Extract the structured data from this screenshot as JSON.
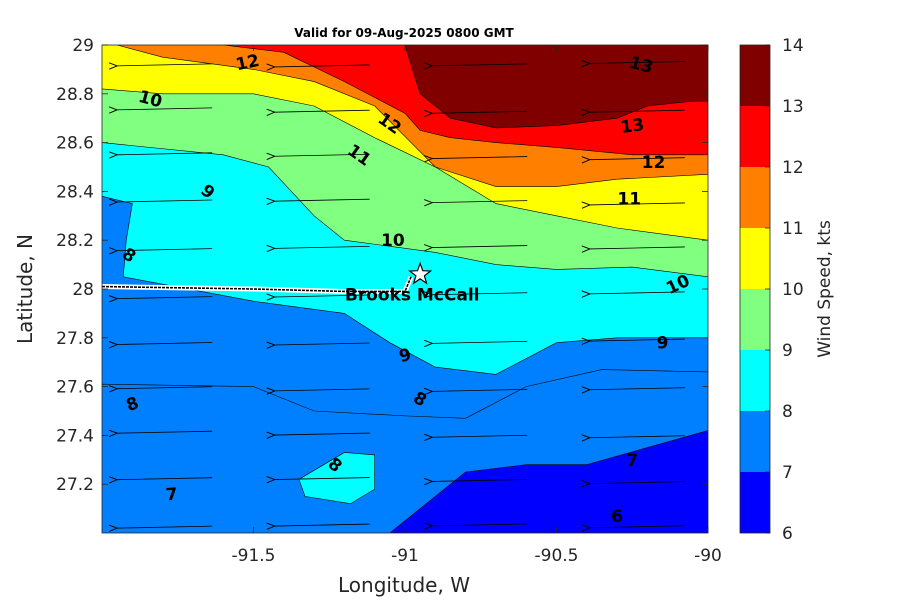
{
  "chart_data": {
    "type": "contourf",
    "title": "Valid for 09-Aug-2025 0800 GMT",
    "xlabel": "Longitude, W",
    "ylabel": "Latitude, N",
    "colorbar_label": "Wind Speed, kts",
    "xlim": [
      -92,
      -90
    ],
    "ylim": [
      27,
      29
    ],
    "x_ticks": [
      -91.5,
      -91,
      -90.5,
      -90
    ],
    "x_tick_labels": [
      "-91.5",
      "-91",
      "-90.5",
      "-90"
    ],
    "y_ticks": [
      27.2,
      27.4,
      27.6,
      27.8,
      28,
      28.2,
      28.4,
      28.6,
      28.8,
      29
    ],
    "y_tick_labels": [
      "27.2",
      "27.4",
      "27.6",
      "27.8",
      "28",
      "28.2",
      "28.4",
      "28.6",
      "28.8",
      "29"
    ],
    "levels": [
      6,
      7,
      8,
      9,
      10,
      11,
      12,
      13,
      14
    ],
    "colorbar_tick_labels": [
      "6",
      "7",
      "8",
      "9",
      "10",
      "11",
      "12",
      "13",
      "14"
    ],
    "level_colors": [
      "#0000ff",
      "#0080ff",
      "#00ffff",
      "#80ff80",
      "#ffff00",
      "#ff8000",
      "#ff0000",
      "#800000"
    ],
    "wind_direction": "from east (arrows point west)",
    "contours": [
      {
        "level": 7,
        "points": [
          [
            -92,
            27.61
          ],
          [
            -91.5,
            27.6
          ],
          [
            -91.3,
            27.5
          ],
          [
            -91,
            27.48
          ],
          [
            -90.8,
            27.47
          ],
          [
            -90.6,
            27.6
          ],
          [
            -90.35,
            27.67
          ],
          [
            -90,
            27.66
          ]
        ]
      },
      {
        "level": 8,
        "points": [
          [
            -92,
            28.38
          ],
          [
            -91.9,
            28.35
          ],
          [
            -91.92,
            28.2
          ],
          [
            -91.93,
            28.05
          ],
          [
            -91.5,
            27.95
          ],
          [
            -91.2,
            27.9
          ],
          [
            -91.05,
            27.78
          ],
          [
            -90.9,
            27.68
          ],
          [
            -90.7,
            27.65
          ],
          [
            -90.5,
            27.78
          ],
          [
            -90.3,
            27.8
          ],
          [
            -90,
            27.8
          ]
        ]
      },
      {
        "level": 9,
        "points": [
          [
            -92,
            28.6
          ],
          [
            -91.6,
            28.55
          ],
          [
            -91.45,
            28.5
          ],
          [
            -91.3,
            28.3
          ],
          [
            -91.2,
            28.2
          ],
          [
            -90.9,
            28.15
          ],
          [
            -90.7,
            28.1
          ],
          [
            -90.5,
            28.08
          ],
          [
            -90.25,
            28.09
          ],
          [
            -90,
            28.05
          ]
        ]
      },
      {
        "level": 10,
        "points": [
          [
            -92,
            28.82
          ],
          [
            -91.8,
            28.8
          ],
          [
            -91.5,
            28.8
          ],
          [
            -91.3,
            28.75
          ],
          [
            -91.1,
            28.62
          ],
          [
            -90.9,
            28.5
          ],
          [
            -90.7,
            28.35
          ],
          [
            -90.5,
            28.3
          ],
          [
            -90.3,
            28.25
          ],
          [
            -90,
            28.2
          ]
        ]
      },
      {
        "level": 11,
        "points": [
          [
            -91.95,
            29
          ],
          [
            -91.8,
            28.95
          ],
          [
            -91.5,
            28.9
          ],
          [
            -91.3,
            28.85
          ],
          [
            -91.1,
            28.75
          ],
          [
            -90.9,
            28.5
          ],
          [
            -90.7,
            28.42
          ],
          [
            -90.5,
            28.42
          ],
          [
            -90.3,
            28.45
          ],
          [
            -90,
            28.47
          ]
        ]
      },
      {
        "level": 12,
        "points": [
          [
            -91.6,
            29
          ],
          [
            -91.4,
            28.97
          ],
          [
            -91.2,
            28.85
          ],
          [
            -91.0,
            28.72
          ],
          [
            -90.95,
            28.65
          ],
          [
            -90.85,
            28.62
          ],
          [
            -90.7,
            28.6
          ],
          [
            -90.5,
            28.58
          ],
          [
            -90.25,
            28.55
          ],
          [
            -90,
            28.55
          ]
        ]
      },
      {
        "level": 13,
        "points": [
          [
            -91.0,
            29
          ],
          [
            -90.95,
            28.8
          ],
          [
            -90.85,
            28.7
          ],
          [
            -90.7,
            28.66
          ],
          [
            -90.5,
            28.67
          ],
          [
            -90.3,
            28.7
          ],
          [
            -90.2,
            28.75
          ],
          [
            -90.05,
            28.77
          ],
          [
            -90,
            28.77
          ]
        ]
      },
      {
        "level": 6,
        "points": [
          [
            -91.05,
            27
          ],
          [
            -90.95,
            27.1
          ],
          [
            -90.8,
            27.25
          ],
          [
            -90.6,
            27.28
          ],
          [
            -90.4,
            27.28
          ],
          [
            -90.2,
            27.35
          ],
          [
            -90,
            27.42
          ]
        ]
      }
    ],
    "closed_regions": [
      {
        "level": 8,
        "points": [
          [
            -91.35,
            27.22
          ],
          [
            -91.2,
            27.33
          ],
          [
            -91.1,
            27.32
          ],
          [
            -91.1,
            27.18
          ],
          [
            -91.18,
            27.12
          ],
          [
            -91.33,
            27.15
          ]
        ]
      }
    ],
    "contour_labels": [
      {
        "text": "12",
        "lon": -91.52,
        "lat": 28.93,
        "angle": -12
      },
      {
        "text": "13",
        "lon": -90.22,
        "lat": 28.92,
        "angle": 15
      },
      {
        "text": "10",
        "lon": -91.84,
        "lat": 28.78,
        "angle": 15
      },
      {
        "text": "12",
        "lon": -91.05,
        "lat": 28.68,
        "angle": 35
      },
      {
        "text": "13",
        "lon": -90.25,
        "lat": 28.67,
        "angle": -8
      },
      {
        "text": "11",
        "lon": -91.15,
        "lat": 28.55,
        "angle": 35
      },
      {
        "text": "12",
        "lon": -90.18,
        "lat": 28.52,
        "angle": 0
      },
      {
        "text": "9",
        "lon": -91.65,
        "lat": 28.4,
        "angle": 40
      },
      {
        "text": "11",
        "lon": -90.26,
        "lat": 28.37,
        "angle": 0
      },
      {
        "text": "10",
        "lon": -91.04,
        "lat": 28.2,
        "angle": 0
      },
      {
        "text": "8",
        "lon": -91.91,
        "lat": 28.14,
        "angle": 35
      },
      {
        "text": "10",
        "lon": -90.1,
        "lat": 28.02,
        "angle": -25
      },
      {
        "text": "9",
        "lon": -91.0,
        "lat": 27.73,
        "angle": -15
      },
      {
        "text": "9",
        "lon": -90.15,
        "lat": 27.78,
        "angle": 0
      },
      {
        "text": "8",
        "lon": -91.9,
        "lat": 27.53,
        "angle": -20
      },
      {
        "text": "8",
        "lon": -90.95,
        "lat": 27.55,
        "angle": 30
      },
      {
        "text": "8",
        "lon": -91.23,
        "lat": 27.28,
        "angle": 40
      },
      {
        "text": "7",
        "lon": -91.77,
        "lat": 27.16,
        "angle": -5
      },
      {
        "text": "7",
        "lon": -90.25,
        "lat": 27.3,
        "angle": 0
      },
      {
        "text": "6",
        "lon": -90.3,
        "lat": 27.07,
        "angle": 0
      }
    ],
    "track": [
      [
        -92,
        28.01
      ],
      [
        -91.5,
        28.0
      ],
      [
        -91.2,
        27.99
      ],
      [
        -91.0,
        27.99
      ],
      [
        -90.98,
        28.05
      ]
    ],
    "station": {
      "name": "Brooks McCall",
      "lon": -90.95,
      "lat": 28.06
    }
  }
}
